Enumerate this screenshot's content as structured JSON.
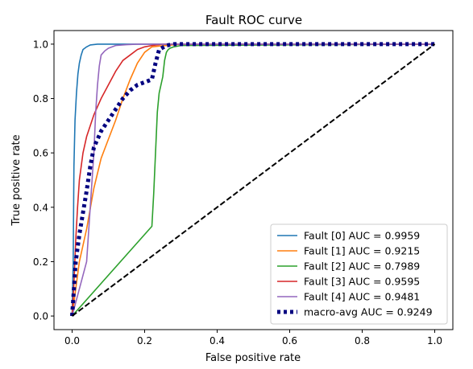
{
  "chart_data": {
    "type": "line",
    "title": "Fault ROC curve",
    "xlabel": "False positive rate",
    "ylabel": "True positive rate",
    "xlim": [
      -0.05,
      1.05
    ],
    "ylim": [
      -0.05,
      1.05
    ],
    "xticks": [
      "0.0",
      "0.2",
      "0.4",
      "0.6",
      "0.8",
      "1.0"
    ],
    "yticks": [
      "0.0",
      "0.2",
      "0.4",
      "0.6",
      "0.8",
      "1.0"
    ],
    "legend_position": "lower-right",
    "grid": false,
    "series": [
      {
        "name": "Fault [0] AUC = 0.9959",
        "color": "#1f77b4",
        "style": "solid",
        "x": [
          0.0,
          0.003,
          0.005,
          0.008,
          0.012,
          0.016,
          0.02,
          0.025,
          0.03,
          0.04,
          0.05,
          0.07,
          1.0
        ],
        "y": [
          0.0,
          0.2,
          0.55,
          0.72,
          0.82,
          0.89,
          0.93,
          0.96,
          0.98,
          0.99,
          0.997,
          1.0,
          1.0
        ]
      },
      {
        "name": "Fault [1] AUC = 0.9215",
        "color": "#ff7f0e",
        "style": "solid",
        "x": [
          0.0,
          0.01,
          0.02,
          0.04,
          0.06,
          0.08,
          0.1,
          0.12,
          0.14,
          0.16,
          0.18,
          0.2,
          0.22,
          0.24,
          0.26,
          0.3,
          1.0
        ],
        "y": [
          0.0,
          0.1,
          0.2,
          0.32,
          0.47,
          0.58,
          0.65,
          0.72,
          0.8,
          0.87,
          0.93,
          0.97,
          0.99,
          0.993,
          0.995,
          1.0,
          1.0
        ]
      },
      {
        "name": "Fault [2] AUC = 0.7989",
        "color": "#2ca02c",
        "style": "solid",
        "x": [
          0.0,
          0.22,
          0.225,
          0.23,
          0.235,
          0.24,
          0.25,
          0.255,
          0.26,
          0.265,
          0.27,
          0.28,
          0.3,
          1.0
        ],
        "y": [
          0.0,
          0.33,
          0.45,
          0.6,
          0.75,
          0.82,
          0.88,
          0.94,
          0.97,
          0.98,
          0.985,
          0.99,
          0.995,
          1.0
        ]
      },
      {
        "name": "Fault [3] AUC = 0.9595",
        "color": "#d62728",
        "style": "solid",
        "x": [
          0.0,
          0.005,
          0.01,
          0.015,
          0.02,
          0.03,
          0.04,
          0.05,
          0.06,
          0.07,
          0.08,
          0.1,
          0.12,
          0.14,
          0.16,
          0.18,
          0.2,
          0.22,
          0.25,
          1.0
        ],
        "y": [
          0.0,
          0.12,
          0.28,
          0.4,
          0.5,
          0.6,
          0.66,
          0.7,
          0.74,
          0.77,
          0.8,
          0.85,
          0.9,
          0.94,
          0.96,
          0.98,
          0.99,
          0.995,
          1.0,
          1.0
        ]
      },
      {
        "name": "Fault [4] AUC = 0.9481",
        "color": "#9467bd",
        "style": "solid",
        "x": [
          0.0,
          0.02,
          0.04,
          0.05,
          0.06,
          0.065,
          0.07,
          0.075,
          0.08,
          0.09,
          0.1,
          0.12,
          0.15,
          0.18,
          0.2,
          1.0
        ],
        "y": [
          0.0,
          0.1,
          0.2,
          0.4,
          0.6,
          0.75,
          0.85,
          0.92,
          0.96,
          0.975,
          0.985,
          0.995,
          0.998,
          1.0,
          1.0,
          1.0
        ]
      },
      {
        "name": "macro-avg AUC = 0.9249",
        "color": "#000080",
        "style": "dotted",
        "x": [
          0.0,
          0.01,
          0.02,
          0.03,
          0.04,
          0.05,
          0.06,
          0.08,
          0.1,
          0.12,
          0.14,
          0.16,
          0.18,
          0.2,
          0.22,
          0.23,
          0.24,
          0.26,
          0.28,
          1.0
        ],
        "y": [
          0.0,
          0.2,
          0.3,
          0.38,
          0.46,
          0.55,
          0.62,
          0.68,
          0.72,
          0.76,
          0.8,
          0.83,
          0.85,
          0.86,
          0.87,
          0.93,
          0.98,
          0.995,
          1.0,
          1.0
        ]
      },
      {
        "color": "#000000",
        "style": "dashed",
        "x": [
          0.0,
          1.0
        ],
        "y": [
          0.0,
          1.0
        ]
      }
    ]
  }
}
